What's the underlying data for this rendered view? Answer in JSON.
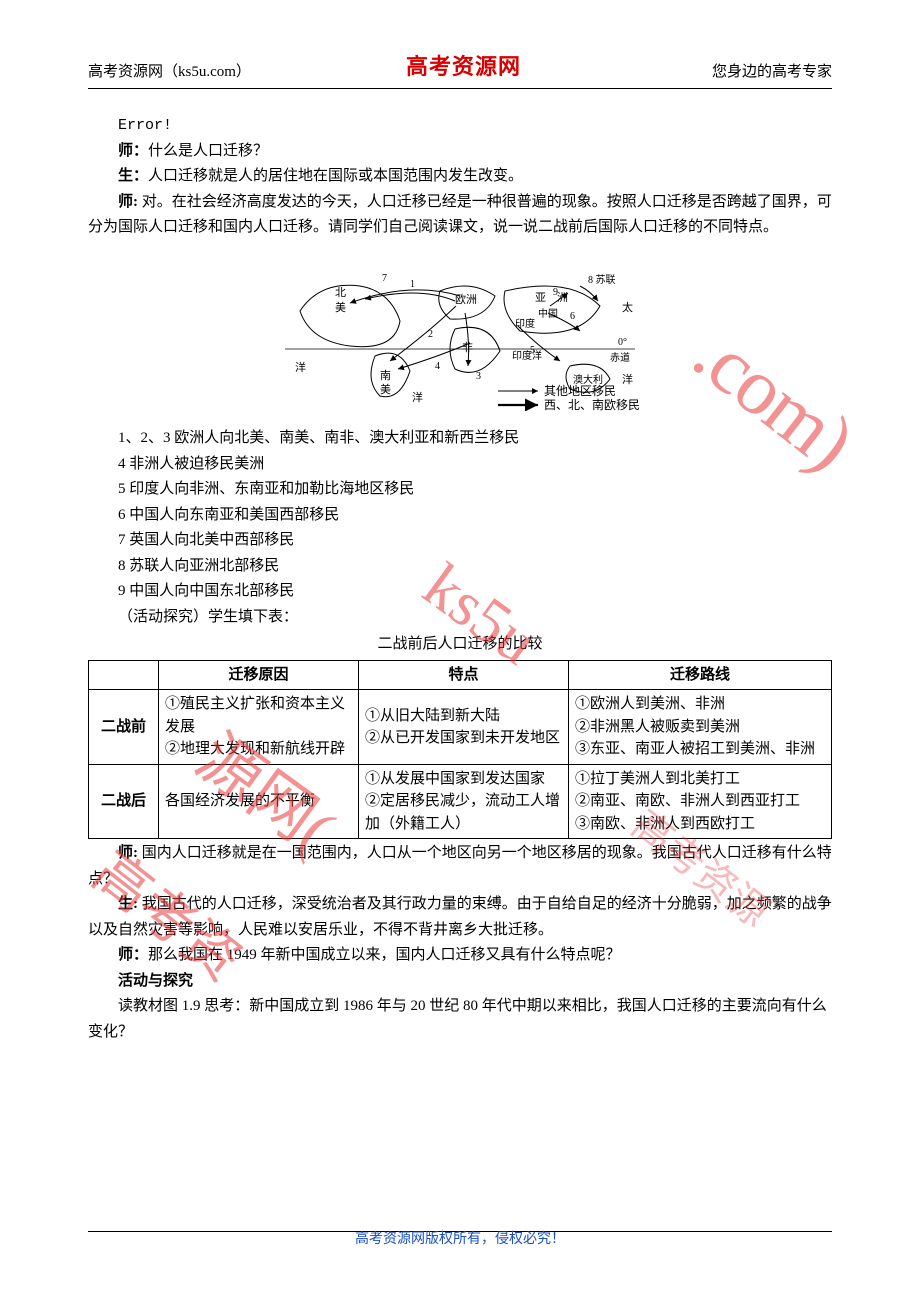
{
  "header": {
    "left": "高考资源网（ks5u.com）",
    "center": "高考资源网",
    "right": "您身边的高考专家"
  },
  "error_text": "Error!",
  "dialog": {
    "q1_speaker": "师：",
    "q1_text": "什么是人口迁移？",
    "a1_speaker": "生：",
    "a1_text": "人口迁移就是人的居住地在国际或本国范围内发生改变。",
    "t1_speaker": "师: ",
    "t1_text": "对。在社会经济高度发达的今天，人口迁移已经是一种很普遍的现象。按照人口迁移是否跨越了国界，可分为国际人口迁移和国内人口迁移。请同学们自己阅读课文，说一说二战前后国际人口迁移的不同特点。"
  },
  "legend": {
    "other": "其他地区移民",
    "europe": "西、北、南欧移民"
  },
  "list_items": [
    "1、2、3 欧洲人向北美、南美、南非、澳大利亚和新西兰移民",
    "4 非洲人被迫移民美洲",
    "5 印度人向非洲、东南亚和加勒比海地区移民",
    "6 中国人向东南亚和美国西部移民",
    "7 英国人向北美中西部移民",
    "8 苏联人向亚洲北部移民",
    "9 中国人向中国东北部移民"
  ],
  "activity_label": "（活动探究）学生填下表：",
  "table": {
    "caption": "二战前后人口迁移的比较",
    "headers": [
      "",
      "迁移原因",
      "特点",
      "迁移路线"
    ],
    "rows": [
      {
        "head": "二战前",
        "cause": "①殖民主义扩张和资本主义发展\n②地理大发现和新航线开辟",
        "feature": "①从旧大陆到新大陆\n②从已开发国家到未开发地区",
        "route": "①欧洲人到美洲、非洲\n②非洲黑人被贩卖到美洲\n③东亚、南亚人被招工到美洲、非洲"
      },
      {
        "head": "二战后",
        "cause": "各国经济发展的不平衡",
        "feature": "①从发展中国家到发达国家\n②定居移民减少，流动工人增加（外籍工人）",
        "route": "①拉丁美洲人到北美打工\n②南亚、南欧、非洲人到西亚打工\n③南欧、非洲人到西欧打工"
      }
    ]
  },
  "dialog2": {
    "s1_speaker": "师: ",
    "s1_text": "国内人口迁移就是在一国范围内，人口从一个地区向另一个地区移居的现象。我国古代人口迁移有什么特点？",
    "s2_speaker": "生: ",
    "s2_text": "我国古代的人口迁移，深受统治者及其行政力量的束缚。由于自给自足的经济十分脆弱，加之频繁的战争以及自然灾害等影响，人民难以安居乐业，不得不背井离乡大批迁移。",
    "s3_speaker": "师：",
    "s3_text": "那么我国在 1949 年新中国成立以来，国内人口迁移又具有什么特点呢？"
  },
  "activity_title": "活动与探究",
  "activity_body": "读教材图 1.9 思考：新中国成立到 1986 年与 20 世纪 80 年代中期以来相比，我国人口迁移的主要流向有什么变化？",
  "footer": "高考资源网版权所有，侵权必究！",
  "watermark": {
    "w1": ".com)",
    "w2": "ks5u",
    "w3": "源网(",
    "w4": "高考资",
    "w5": "高考资源"
  },
  "colors": {
    "brand_red": "#d80000",
    "watermark_red": "#e93a3a",
    "footer_blue": "#1a4fc4"
  }
}
